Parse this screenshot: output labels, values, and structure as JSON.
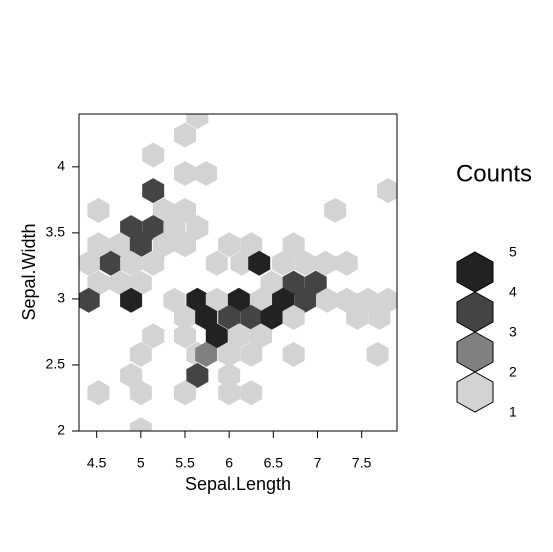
{
  "chart_data": {
    "type": "hexbin",
    "x_label": "Sepal.Length",
    "y_label": "Sepal.Width",
    "xlim": [
      4.3,
      7.9
    ],
    "ylim": [
      2,
      4.4
    ],
    "xticks": [
      4.5,
      5,
      5.5,
      6,
      6.5,
      7,
      7.5
    ],
    "yticks": [
      2,
      2.5,
      3,
      3.5,
      4
    ],
    "x": [
      5.64,
      5.5,
      5.14,
      5.5,
      5.74,
      7.8,
      5.14,
      4.52,
      5.26,
      5.5,
      7.2,
      4.89,
      5.14,
      5.38,
      5.64,
      4.52,
      4.77,
      5.0,
      5.26,
      5.5,
      6.0,
      6.25,
      6.73,
      4.41,
      4.66,
      4.89,
      5.14,
      5.86,
      6.14,
      6.34,
      6.61,
      6.86,
      7.09,
      7.33,
      4.52,
      4.77,
      5.0,
      6.48,
      6.73,
      6.98,
      4.41,
      4.89,
      5.38,
      5.64,
      5.86,
      6.11,
      6.36,
      6.61,
      6.86,
      7.11,
      7.33,
      7.57,
      7.8,
      5.5,
      5.74,
      6.0,
      6.25,
      6.48,
      6.73,
      7.45,
      7.7,
      5.14,
      5.5,
      5.86,
      6.11,
      6.36,
      5.0,
      5.64,
      5.74,
      6.0,
      6.25,
      6.73,
      7.68,
      4.89,
      5.64,
      6.0,
      4.52,
      5.0,
      5.5,
      6.0,
      6.25,
      5.0
    ],
    "y": [
      4.38,
      4.24,
      4.09,
      3.95,
      3.95,
      3.82,
      3.82,
      3.67,
      3.67,
      3.67,
      3.67,
      3.54,
      3.54,
      3.54,
      3.54,
      3.41,
      3.41,
      3.41,
      3.41,
      3.41,
      3.41,
      3.41,
      3.41,
      3.27,
      3.27,
      3.27,
      3.27,
      3.27,
      3.27,
      3.27,
      3.27,
      3.27,
      3.27,
      3.27,
      3.12,
      3.12,
      3.12,
      3.12,
      3.12,
      3.12,
      2.99,
      2.99,
      2.99,
      2.99,
      2.99,
      2.99,
      2.99,
      2.99,
      2.99,
      2.99,
      2.99,
      2.99,
      2.99,
      2.86,
      2.86,
      2.86,
      2.86,
      2.86,
      2.86,
      2.86,
      2.86,
      2.72,
      2.72,
      2.72,
      2.72,
      2.72,
      2.58,
      2.58,
      2.58,
      2.58,
      2.58,
      2.58,
      2.58,
      2.42,
      2.42,
      2.42,
      2.29,
      2.29,
      2.29,
      2.29,
      2.29,
      2.01
    ],
    "counts": [
      1,
      1,
      1,
      1,
      1,
      1,
      3,
      1,
      1,
      1,
      1,
      3,
      3,
      1,
      1,
      1,
      1,
      3,
      1,
      1,
      1,
      1,
      1,
      1,
      3,
      1,
      1,
      1,
      1,
      4,
      1,
      1,
      1,
      1,
      1,
      1,
      1,
      1,
      3,
      3,
      3,
      4,
      1,
      4,
      1,
      4,
      1,
      5,
      3,
      1,
      1,
      1,
      1,
      1,
      4,
      3,
      3,
      4,
      1,
      1,
      1,
      1,
      1,
      4,
      1,
      1,
      1,
      1,
      2,
      1,
      1,
      1,
      1,
      1,
      3,
      1,
      1,
      1,
      1,
      1,
      1,
      1
    ],
    "legend_title": "Counts",
    "legend_labels": [
      5,
      4,
      3,
      2,
      1
    ],
    "colors": [
      "#d3d3d3",
      "#808080",
      "#444444",
      "#222222"
    ]
  }
}
